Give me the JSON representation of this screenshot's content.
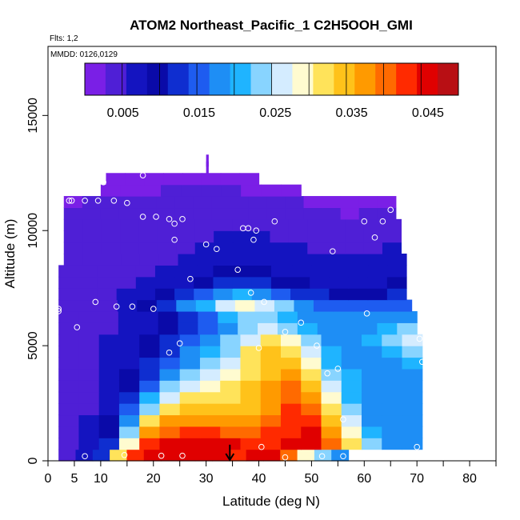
{
  "chart_data": {
    "type": "heatmap",
    "title": "ATOM2 Northeast_Pacific_1 C2H5OOH_GMI",
    "flights_label": "Flts: 1,2",
    "dates_label": "MMDD: 0126,0129",
    "xlabel": "Latitude (deg N)",
    "ylabel": "Altitude (m)",
    "xlim": [
      0,
      85
    ],
    "ylim": [
      0,
      18000
    ],
    "x_ticks": [
      0,
      5,
      10,
      20,
      30,
      40,
      50,
      60,
      70,
      80
    ],
    "y_ticks": [
      0,
      5000,
      10000,
      15000
    ],
    "y_tick_labels": [
      "0",
      "5000",
      "10000",
      "15000"
    ],
    "colorbar": {
      "min": 0.0,
      "max": 0.049,
      "tick_values": [
        0.005,
        0.015,
        0.025,
        0.035,
        0.045
      ],
      "tick_labels": [
        "0.005",
        "0.015",
        "0.025",
        "0.035",
        "0.045"
      ],
      "colors": [
        "#7a1fe6",
        "#4f1fd6",
        "#1414c0",
        "#0a0aa8",
        "#0f2ed0",
        "#1e5cf0",
        "#1e8ef5",
        "#1fb4ff",
        "#88d4ff",
        "#d4ecff",
        "#fffbd0",
        "#ffe35a",
        "#ffc21a",
        "#ff9a00",
        "#ff6a00",
        "#ff2a00",
        "#e00000",
        "#b80f14"
      ]
    },
    "rows": [
      {
        "alt": 0,
        "x0": 2,
        "x1": 57,
        "v": [
          0.005,
          0.007,
          0.012,
          0.03,
          0.042,
          0.046,
          0.046,
          0.045,
          0.045,
          0.044,
          0.043,
          0.044,
          0.045,
          0.04,
          0.028,
          0.024,
          0.018
        ]
      },
      {
        "alt": 500,
        "x0": 2,
        "x1": 71,
        "v": [
          0.005,
          0.006,
          0.012,
          0.028,
          0.041,
          0.044,
          0.045,
          0.045,
          0.044,
          0.043,
          0.043,
          0.044,
          0.045,
          0.04,
          0.03,
          0.022,
          0.019,
          0.018
        ]
      },
      {
        "alt": 1000,
        "x0": 2,
        "x1": 71,
        "v": [
          0.005,
          0.006,
          0.01,
          0.022,
          0.036,
          0.04,
          0.041,
          0.041,
          0.04,
          0.04,
          0.041,
          0.043,
          0.044,
          0.038,
          0.028,
          0.02,
          0.018,
          0.018
        ]
      },
      {
        "alt": 1500,
        "x0": 2,
        "x1": 71,
        "v": [
          0.005,
          0.006,
          0.009,
          0.018,
          0.03,
          0.036,
          0.038,
          0.038,
          0.037,
          0.037,
          0.039,
          0.042,
          0.042,
          0.035,
          0.025,
          0.019,
          0.018,
          0.018
        ]
      },
      {
        "alt": 2000,
        "x0": 2,
        "x1": 71,
        "v": [
          0.005,
          0.005,
          0.008,
          0.015,
          0.024,
          0.031,
          0.034,
          0.034,
          0.034,
          0.035,
          0.038,
          0.041,
          0.04,
          0.031,
          0.022,
          0.019,
          0.018,
          0.018
        ]
      },
      {
        "alt": 2500,
        "x0": 2,
        "x1": 71,
        "v": [
          0.005,
          0.005,
          0.007,
          0.012,
          0.02,
          0.026,
          0.03,
          0.032,
          0.032,
          0.034,
          0.037,
          0.04,
          0.038,
          0.028,
          0.021,
          0.019,
          0.018,
          0.018
        ]
      },
      {
        "alt": 3000,
        "x0": 2,
        "x1": 71,
        "v": [
          0.005,
          0.005,
          0.007,
          0.01,
          0.016,
          0.022,
          0.026,
          0.029,
          0.03,
          0.033,
          0.036,
          0.039,
          0.035,
          0.025,
          0.02,
          0.019,
          0.018,
          0.018
        ]
      },
      {
        "alt": 3500,
        "x0": 2,
        "x1": 71,
        "v": [
          0.005,
          0.005,
          0.006,
          0.009,
          0.013,
          0.018,
          0.022,
          0.026,
          0.028,
          0.032,
          0.035,
          0.037,
          0.032,
          0.023,
          0.02,
          0.019,
          0.018,
          0.019
        ]
      },
      {
        "alt": 4000,
        "x0": 2,
        "x1": 71,
        "v": [
          0.004,
          0.005,
          0.006,
          0.008,
          0.011,
          0.015,
          0.019,
          0.023,
          0.026,
          0.031,
          0.034,
          0.035,
          0.029,
          0.021,
          0.019,
          0.019,
          0.019,
          0.02
        ]
      },
      {
        "alt": 4500,
        "x0": 2,
        "x1": 71,
        "v": [
          0.004,
          0.005,
          0.006,
          0.008,
          0.01,
          0.013,
          0.017,
          0.021,
          0.024,
          0.03,
          0.033,
          0.032,
          0.026,
          0.02,
          0.019,
          0.019,
          0.02,
          0.022
        ]
      },
      {
        "alt": 5000,
        "x0": 2,
        "x1": 71,
        "v": [
          0.004,
          0.005,
          0.006,
          0.007,
          0.009,
          0.012,
          0.015,
          0.018,
          0.022,
          0.027,
          0.03,
          0.028,
          0.023,
          0.019,
          0.019,
          0.02,
          0.022,
          0.026
        ]
      },
      {
        "alt": 5500,
        "x0": 2,
        "x1": 70,
        "v": [
          0.004,
          0.005,
          0.005,
          0.007,
          0.008,
          0.01,
          0.013,
          0.016,
          0.019,
          0.023,
          0.025,
          0.023,
          0.02,
          0.018,
          0.018,
          0.019,
          0.02,
          0.024
        ]
      },
      {
        "alt": 6000,
        "x0": 2,
        "x1": 70,
        "v": [
          0.004,
          0.005,
          0.005,
          0.006,
          0.008,
          0.009,
          0.012,
          0.016,
          0.02,
          0.024,
          0.024,
          0.021,
          0.018,
          0.017,
          0.017,
          0.017,
          0.018,
          0.019
        ]
      },
      {
        "alt": 6500,
        "x0": 2,
        "x1": 69,
        "v": [
          0.004,
          0.004,
          0.005,
          0.007,
          0.01,
          0.013,
          0.017,
          0.021,
          0.025,
          0.028,
          0.027,
          0.023,
          0.019,
          0.016,
          0.015,
          0.014,
          0.014,
          0.014
        ]
      },
      {
        "alt": 7000,
        "x0": 2,
        "x1": 68,
        "v": [
          0.004,
          0.004,
          0.005,
          0.006,
          0.008,
          0.01,
          0.012,
          0.015,
          0.018,
          0.02,
          0.019,
          0.016,
          0.013,
          0.011,
          0.01,
          0.01,
          0.01,
          0.011
        ]
      },
      {
        "alt": 7500,
        "x0": 2,
        "x1": 68,
        "v": [
          0.004,
          0.004,
          0.004,
          0.005,
          0.006,
          0.007,
          0.008,
          0.01,
          0.012,
          0.013,
          0.012,
          0.01,
          0.009,
          0.008,
          0.008,
          0.008,
          0.008,
          0.009
        ]
      },
      {
        "alt": 8000,
        "x0": 2,
        "x1": 68,
        "v": [
          0.004,
          0.004,
          0.004,
          0.004,
          0.005,
          0.006,
          0.007,
          0.008,
          0.009,
          0.009,
          0.009,
          0.008,
          0.007,
          0.007,
          0.007,
          0.007,
          0.007,
          0.008
        ]
      },
      {
        "alt": 8500,
        "x0": 3,
        "x1": 68,
        "v": [
          0.004,
          0.004,
          0.004,
          0.004,
          0.004,
          0.005,
          0.006,
          0.007,
          0.008,
          0.008,
          0.008,
          0.007,
          0.006,
          0.006,
          0.006,
          0.006,
          0.006,
          0.007
        ]
      },
      {
        "alt": 9000,
        "x0": 3,
        "x1": 67,
        "v": [
          0.004,
          0.004,
          0.004,
          0.004,
          0.004,
          0.005,
          0.005,
          0.006,
          0.007,
          0.007,
          0.007,
          0.006,
          0.006,
          0.005,
          0.005,
          0.005,
          0.005,
          0.006
        ]
      },
      {
        "alt": 9500,
        "x0": 3,
        "x1": 67,
        "v": [
          0.003,
          0.003,
          0.004,
          0.004,
          0.004,
          0.004,
          0.005,
          0.005,
          0.006,
          0.006,
          0.006,
          0.005,
          0.005,
          0.005,
          0.004,
          0.004,
          0.004,
          0.005
        ]
      },
      {
        "alt": 10000,
        "x0": 3,
        "x1": 67,
        "v": [
          0.003,
          0.003,
          0.003,
          0.004,
          0.004,
          0.004,
          0.004,
          0.005,
          0.005,
          0.005,
          0.005,
          0.004,
          0.004,
          0.003,
          0.003,
          0.003,
          0.004,
          0.004
        ]
      },
      {
        "alt": 10500,
        "x0": 3,
        "x1": 66,
        "v": [
          0.003,
          0.003,
          0.003,
          0.003,
          0.004,
          0.004,
          0.004,
          0.004,
          0.005,
          0.005,
          0.004,
          0.004,
          0.003,
          0.003,
          0.003,
          0.002,
          0.003,
          0.003
        ]
      },
      {
        "alt": 11000,
        "x0": 3,
        "x1": 66,
        "v": [
          0.002,
          0.003,
          0.003,
          0.003,
          0.003,
          0.004,
          0.004,
          0.004,
          0.004,
          0.004,
          0.004,
          0.003,
          0.003,
          0.002,
          0.002,
          0.002,
          0.002,
          0.002
        ]
      },
      {
        "alt": 11500,
        "x0": 10,
        "x1": 48,
        "v": [
          0.002,
          0.002,
          0.002,
          0.003,
          0.003,
          0.003,
          0.003,
          0.002,
          0.002,
          0.002
        ]
      },
      {
        "alt": 12000,
        "x0": 11,
        "x1": 40,
        "v": [
          0.001,
          0.001,
          0.002,
          0.002,
          0.002,
          0.002,
          0.001,
          0.001
        ]
      },
      {
        "alt": 12500,
        "x0": 30,
        "x1": 30.4,
        "v": [
          0.001
        ]
      },
      {
        "alt": 12800,
        "x0": 30,
        "x1": 30.4,
        "v": [
          0.001
        ]
      }
    ],
    "row_height": 500,
    "flight_points": [
      {
        "x": 0.5,
        "y": 200
      },
      {
        "x": 7,
        "y": 200
      },
      {
        "x": 14.5,
        "y": 250
      },
      {
        "x": 21.5,
        "y": 220
      },
      {
        "x": 25.5,
        "y": 220
      },
      {
        "x": 40.5,
        "y": 600
      },
      {
        "x": 45,
        "y": 150
      },
      {
        "x": 52,
        "y": 200
      },
      {
        "x": 56,
        "y": 200
      },
      {
        "x": 70,
        "y": 600
      },
      {
        "x": 56,
        "y": 1800
      },
      {
        "x": 53,
        "y": 3800
      },
      {
        "x": 55,
        "y": 4000
      },
      {
        "x": 71,
        "y": 4300
      },
      {
        "x": 70.5,
        "y": 5300
      },
      {
        "x": 23,
        "y": 4700
      },
      {
        "x": 25,
        "y": 5100
      },
      {
        "x": 40,
        "y": 4900
      },
      {
        "x": 51,
        "y": 5000
      },
      {
        "x": 45,
        "y": 5600
      },
      {
        "x": 48,
        "y": 6000
      },
      {
        "x": 5.5,
        "y": 5800
      },
      {
        "x": 2,
        "y": 6500
      },
      {
        "x": 2,
        "y": 6600
      },
      {
        "x": 9,
        "y": 6900
      },
      {
        "x": 13,
        "y": 6700
      },
      {
        "x": 16,
        "y": 6700
      },
      {
        "x": 20,
        "y": 6600
      },
      {
        "x": 41,
        "y": 6900
      },
      {
        "x": 60.5,
        "y": 6400
      },
      {
        "x": 38.5,
        "y": 7300
      },
      {
        "x": 27,
        "y": 7900
      },
      {
        "x": 36,
        "y": 8300
      },
      {
        "x": 30,
        "y": 9400
      },
      {
        "x": 32,
        "y": 9200
      },
      {
        "x": 24,
        "y": 9600
      },
      {
        "x": 39,
        "y": 9600
      },
      {
        "x": 54,
        "y": 9100
      },
      {
        "x": 38,
        "y": 10100
      },
      {
        "x": 37,
        "y": 10100
      },
      {
        "x": 39.5,
        "y": 10000
      },
      {
        "x": 43,
        "y": 10400
      },
      {
        "x": 62,
        "y": 9700
      },
      {
        "x": 60,
        "y": 10400
      },
      {
        "x": 63.5,
        "y": 10400
      },
      {
        "x": 24,
        "y": 10300
      },
      {
        "x": 18,
        "y": 10600
      },
      {
        "x": 20.5,
        "y": 10600
      },
      {
        "x": 23,
        "y": 10500
      },
      {
        "x": 25.5,
        "y": 10500
      },
      {
        "x": 4,
        "y": 11300
      },
      {
        "x": 4.5,
        "y": 11300
      },
      {
        "x": 7,
        "y": 11300
      },
      {
        "x": 9.5,
        "y": 11300
      },
      {
        "x": 12.5,
        "y": 11300
      },
      {
        "x": 15,
        "y": 11200
      },
      {
        "x": 10.5,
        "y": 12100
      },
      {
        "x": 18,
        "y": 12400
      },
      {
        "x": 65,
        "y": 10900
      }
    ],
    "arrow": {
      "x": 34.5,
      "y_top": 700,
      "y_bottom": 0
    }
  }
}
